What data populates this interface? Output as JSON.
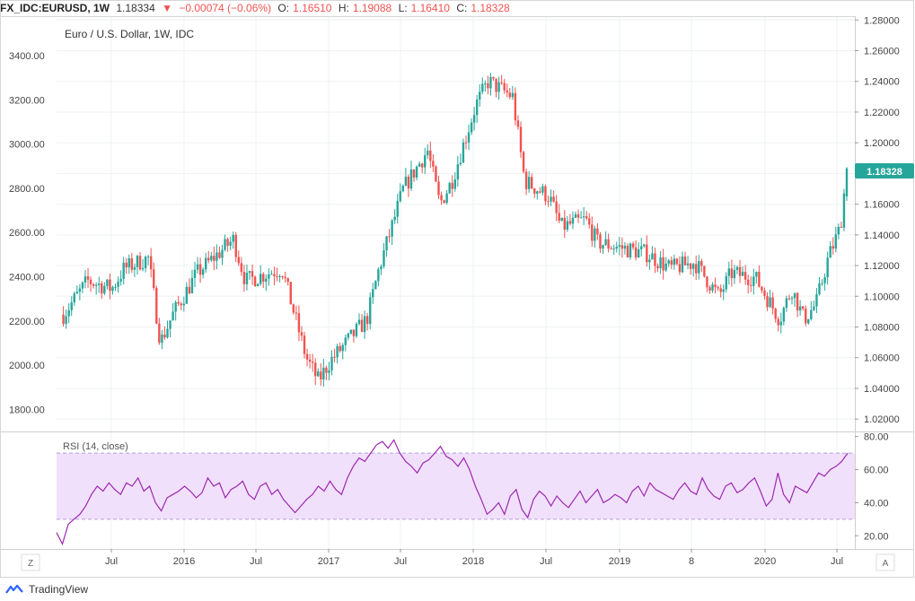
{
  "header": {
    "symbol": "FX_IDC:EURUSD, 1W",
    "price": "1.18334",
    "change_icon": "triangle-down-icon",
    "change": "−0.00074 (−0.06%)",
    "o_label": "O:",
    "o": "1.16510",
    "h_label": "H:",
    "h": "1.19088",
    "l_label": "L:",
    "l": "1.16410",
    "c_label": "C:",
    "c": "1.18328"
  },
  "chart_title": "Euro / U.S. Dollar, 1W, IDC",
  "rsi_label": "RSI (14, close)",
  "last_price_badge": "1.18328",
  "corner_left": "Z",
  "corner_right": "A",
  "brand": "TradingView",
  "colors": {
    "up": "#26a69a",
    "down": "#ef5350",
    "rsi_line": "#9c27b0",
    "rsi_band": "#f1e0fb",
    "badge": "#26a69a"
  },
  "chart_data": [
    {
      "type": "candlestick",
      "title": "Euro / U.S. Dollar, 1W, IDC",
      "x_ticks": [
        "Jul",
        "2016",
        "Jul",
        "2017",
        "Jul",
        "2018",
        "Jul",
        "2019",
        "8",
        "2020",
        "Jul"
      ],
      "y_right_ticks": [
        "1.28000",
        "1.26000",
        "1.24000",
        "1.22000",
        "1.20000",
        "1.18000",
        "1.16000",
        "1.14000",
        "1.12000",
        "1.10000",
        "1.08000",
        "1.06000",
        "1.04000",
        "1.02000"
      ],
      "y_left_ticks": [
        "3400.00",
        "3200.00",
        "3000.00",
        "2800.00",
        "2600.00",
        "2400.00",
        "2200.00",
        "2000.00",
        "1800.00"
      ],
      "ylim_right": [
        1.0125,
        1.2825
      ],
      "last_close": 1.18328,
      "close_path": [
        [
          "2015-03",
          1.088
        ],
        [
          "2015-05",
          1.11
        ],
        [
          "2015-07",
          1.105
        ],
        [
          "2015-08",
          1.118
        ],
        [
          "2015-10",
          1.125
        ],
        [
          "2015-11",
          1.07
        ],
        [
          "2015-12",
          1.088
        ],
        [
          "2016-02",
          1.115
        ],
        [
          "2016-05",
          1.137
        ],
        [
          "2016-06",
          1.11
        ],
        [
          "2016-09",
          1.118
        ],
        [
          "2016-11",
          1.06
        ],
        [
          "2016-12",
          1.045
        ],
        [
          "2017-01",
          1.058
        ],
        [
          "2017-04",
          1.085
        ],
        [
          "2017-05",
          1.118
        ],
        [
          "2017-07",
          1.17
        ],
        [
          "2017-09",
          1.195
        ],
        [
          "2017-10",
          1.16
        ],
        [
          "2017-11",
          1.175
        ],
        [
          "2018-01",
          1.225
        ],
        [
          "2018-02",
          1.24
        ],
        [
          "2018-04",
          1.23
        ],
        [
          "2018-05",
          1.175
        ],
        [
          "2018-07",
          1.165
        ],
        [
          "2018-08",
          1.145
        ],
        [
          "2018-10",
          1.15
        ],
        [
          "2018-11",
          1.135
        ],
        [
          "2019-03",
          1.128
        ],
        [
          "2019-05",
          1.118
        ],
        [
          "2019-07",
          1.122
        ],
        [
          "2019-09",
          1.1
        ],
        [
          "2019-10",
          1.115
        ],
        [
          "2019-12",
          1.112
        ],
        [
          "2020-02",
          1.085
        ],
        [
          "2020-03",
          1.105
        ],
        [
          "2020-04",
          1.085
        ],
        [
          "2020-05",
          1.095
        ],
        [
          "2020-06",
          1.125
        ],
        [
          "2020-07",
          1.145
        ],
        [
          "2020-07-17",
          1.18328
        ]
      ]
    },
    {
      "type": "line",
      "title": "RSI (14, close)",
      "y_ticks": [
        "80.00",
        "60.00",
        "40.00",
        "20.00"
      ],
      "ylim": [
        12,
        82
      ],
      "band": [
        30,
        70
      ],
      "values": [
        22,
        15,
        27,
        30,
        33,
        38,
        45,
        50,
        47,
        52,
        48,
        45,
        52,
        50,
        55,
        47,
        50,
        40,
        35,
        43,
        45,
        47,
        50,
        47,
        43,
        46,
        55,
        50,
        52,
        43,
        48,
        50,
        53,
        45,
        42,
        50,
        52,
        45,
        48,
        42,
        38,
        34,
        38,
        42,
        45,
        50,
        47,
        53,
        48,
        45,
        55,
        62,
        67,
        65,
        70,
        75,
        77,
        73,
        78,
        70,
        65,
        62,
        58,
        64,
        66,
        70,
        74,
        68,
        66,
        62,
        67,
        60,
        50,
        42,
        33,
        36,
        40,
        33,
        44,
        48,
        36,
        31,
        42,
        47,
        44,
        38,
        44,
        40,
        37,
        42,
        47,
        40,
        44,
        48,
        40,
        42,
        45,
        43,
        40,
        47,
        50,
        44,
        52,
        48,
        46,
        44,
        42,
        48,
        52,
        47,
        45,
        55,
        48,
        44,
        42,
        50,
        52,
        46,
        48,
        52,
        55,
        47,
        38,
        42,
        58,
        45,
        40,
        50,
        48,
        46,
        52,
        58,
        56,
        60,
        62,
        65,
        70
      ]
    }
  ]
}
